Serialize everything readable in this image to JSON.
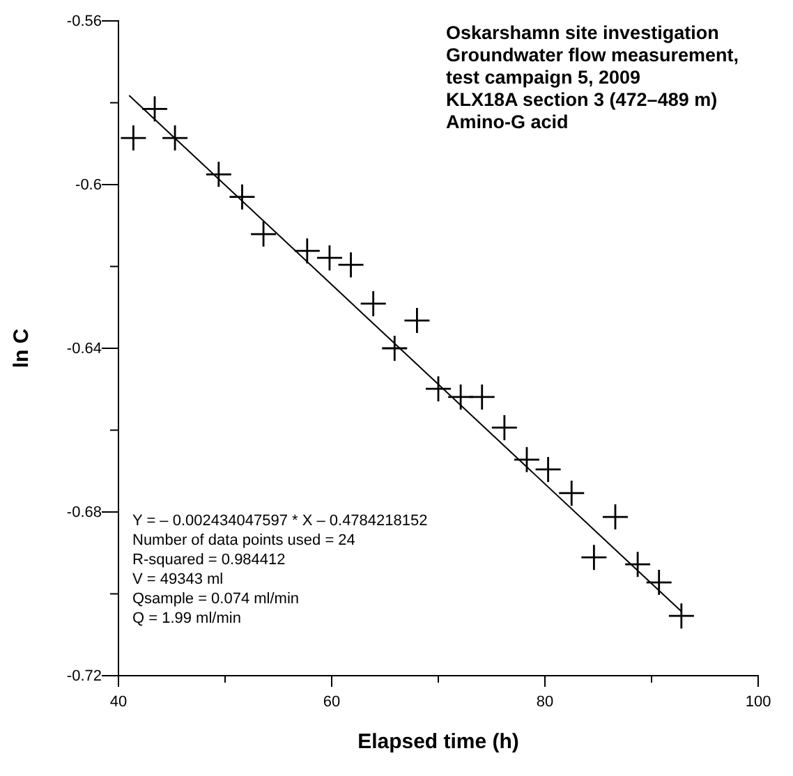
{
  "chart_data": {
    "type": "scatter",
    "title": "Oskarshamn site investigation\nGroundwater flow measurement,\ntest campaign 5, 2009\nKLX18A section 3 (472–489 m)\nAmino-G acid",
    "xlabel": "Elapsed time (h)",
    "ylabel": "ln C",
    "xlim": [
      40,
      100
    ],
    "xticks": [
      40,
      {
        "value": 50,
        "label": null
      },
      60,
      {
        "value": 70,
        "label": null
      },
      80,
      {
        "value": 90,
        "label": null
      },
      100
    ],
    "ylim": [
      -0.72,
      -0.56
    ],
    "yticks": [
      -0.72,
      {
        "value": -0.7,
        "label": null
      },
      -0.68,
      {
        "value": -0.66,
        "label": null
      },
      -0.64,
      {
        "value": -0.62,
        "label": null
      },
      -0.6,
      {
        "value": -0.58,
        "label": null
      },
      -0.56
    ],
    "marker": "cross",
    "grid": false,
    "series": [
      {
        "color": "#000000",
        "x": [
          41.4,
          43.4,
          45.3,
          49.4,
          51.6,
          53.6,
          57.7,
          59.8,
          61.8,
          63.9,
          65.9,
          68.0,
          70.0,
          72.1,
          74.1,
          76.2,
          78.3,
          80.3,
          82.5,
          84.6,
          86.6,
          88.7,
          90.7,
          92.8
        ],
        "values": [
          -0.5886,
          -0.5815,
          -0.5886,
          -0.5975,
          -0.603,
          -0.6121,
          -0.6162,
          -0.6179,
          -0.6196,
          -0.6291,
          -0.64,
          -0.6332,
          -0.6499,
          -0.6519,
          -0.6519,
          -0.6594,
          -0.6672,
          -0.6696,
          -0.6754,
          -0.6911,
          -0.6812,
          -0.6928,
          -0.6972,
          -0.7054
        ]
      },
      {
        "type": "line",
        "color": "#000000",
        "marker": "none",
        "x": [
          41,
          92.8
        ],
        "values": [
          -0.5782,
          -0.7043
        ]
      }
    ],
    "annotations": [
      "Y = – 0.002434047597 * X – 0.4784218152",
      "Number of data points used = 24",
      "R-squared = 0.984412",
      "V = 49343 ml",
      "Qsample = 0.074 ml/min",
      "Q = 1.99 ml/min"
    ]
  }
}
